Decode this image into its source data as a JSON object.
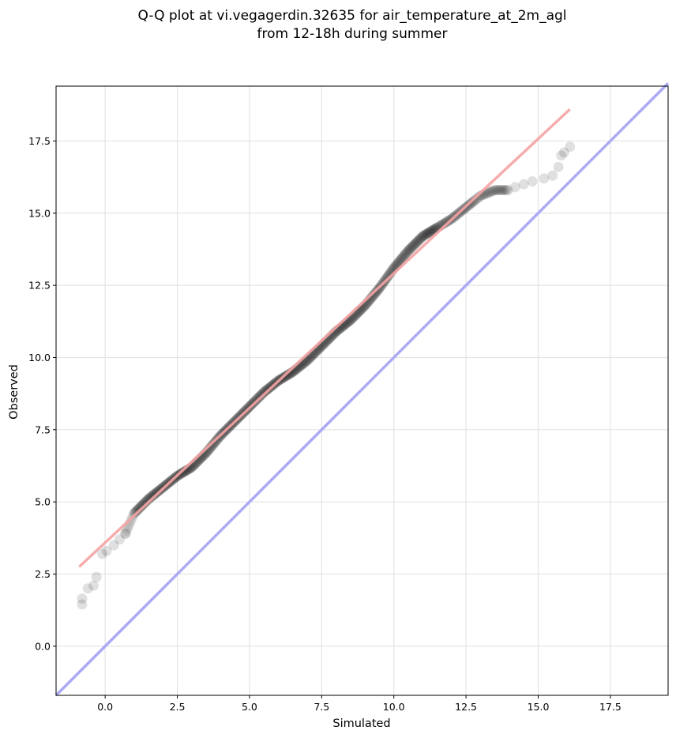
{
  "chart_data": {
    "type": "scatter",
    "title_lines": [
      "Q-Q plot at vi.vegagerdin.32635 for air_temperature_at_2m_agl",
      "from 12-18h during summer"
    ],
    "xlabel": "Simulated",
    "ylabel": "Observed",
    "xlim": [
      -1.7,
      19.5
    ],
    "ylim": [
      -1.7,
      19.4
    ],
    "xticks": [
      0.0,
      2.5,
      5.0,
      7.5,
      10.0,
      12.5,
      15.0,
      17.5
    ],
    "yticks": [
      0.0,
      2.5,
      5.0,
      7.5,
      10.0,
      12.5,
      15.0,
      17.5
    ],
    "tick_labels_x": [
      "0.0",
      "2.5",
      "5.0",
      "7.5",
      "10.0",
      "12.5",
      "15.0",
      "17.5"
    ],
    "tick_labels_y": [
      "0.0",
      "2.5",
      "5.0",
      "7.5",
      "10.0",
      "12.5",
      "15.0",
      "17.5"
    ],
    "grid": true,
    "points_color": "#000000",
    "points_dense_color": "#000000",
    "tail_points": {
      "x": [
        -0.8,
        -0.8,
        -0.6,
        -0.4,
        -0.3,
        -0.1,
        0.05,
        0.3,
        0.5,
        0.7,
        14.2,
        14.5,
        14.8,
        15.2,
        15.5,
        15.7,
        15.8,
        15.9,
        16.1
      ],
      "y": [
        1.45,
        1.65,
        2.0,
        2.1,
        2.4,
        3.2,
        3.3,
        3.5,
        3.7,
        3.9,
        15.9,
        16.0,
        16.1,
        16.2,
        16.3,
        16.6,
        17.0,
        17.1,
        17.3
      ]
    },
    "quantile_curve": {
      "x": [
        0.7,
        1.0,
        1.5,
        2.0,
        2.5,
        3.0,
        3.5,
        4.0,
        4.5,
        5.0,
        5.5,
        6.0,
        6.5,
        7.0,
        7.5,
        8.0,
        8.5,
        9.0,
        9.5,
        10.0,
        10.5,
        11.0,
        11.5,
        12.0,
        12.5,
        13.0,
        13.5,
        14.0
      ],
      "y": [
        3.9,
        4.6,
        5.1,
        5.5,
        5.9,
        6.2,
        6.7,
        7.3,
        7.8,
        8.3,
        8.8,
        9.2,
        9.5,
        9.9,
        10.4,
        10.9,
        11.3,
        11.8,
        12.4,
        13.1,
        13.7,
        14.2,
        14.5,
        14.8,
        15.2,
        15.6,
        15.8,
        15.8
      ]
    },
    "fit_line": {
      "x": [
        -0.9,
        16.1
      ],
      "y": [
        2.75,
        18.6
      ],
      "color": "#f5a3a3"
    },
    "identity_line": {
      "x": [
        -1.7,
        19.5
      ],
      "y": [
        -1.7,
        19.5
      ],
      "color": "#a9abf5"
    }
  }
}
